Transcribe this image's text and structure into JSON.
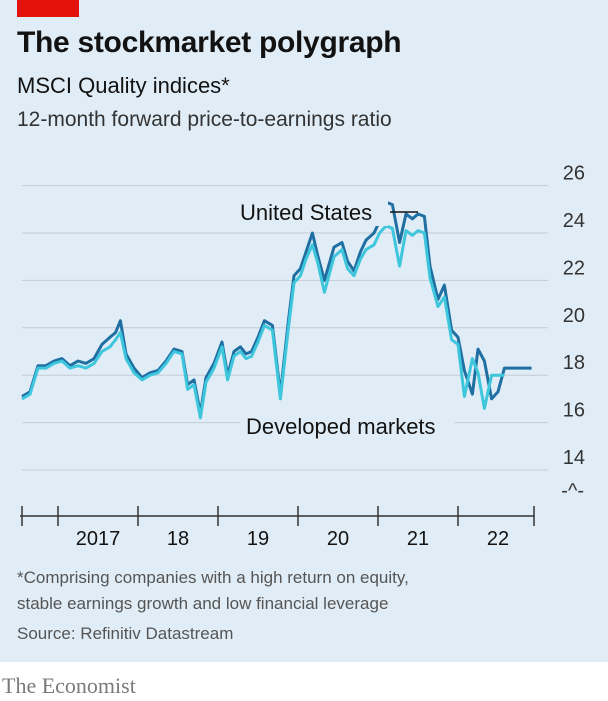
{
  "header": {
    "title": "The stockmarket polygraph",
    "subtitle": "MSCI Quality indices*",
    "unit": "12-month forward price-to-earnings ratio"
  },
  "footer": {
    "note_line1": "*Comprising companies with a high return on equity,",
    "note_line2": "stable earnings growth and low financial leverage",
    "source": "Source: Refinitiv Datastream",
    "brand": "The Economist"
  },
  "colors": {
    "background": "#e1edf6",
    "us": "#1f6fa3",
    "developed": "#3dc6dc",
    "accent": "#e3120b"
  },
  "chart_data": {
    "type": "line",
    "ylim": [
      13,
      26
    ],
    "yticks": [
      "26",
      "24",
      "22",
      "20",
      "18",
      "16",
      "14"
    ],
    "axis_break_symbol": "-^-",
    "xlim": [
      2016.55,
      2022.95
    ],
    "xtick_labels": [
      "2017",
      "18",
      "19",
      "20",
      "21",
      "22"
    ],
    "series": [
      {
        "name": "United States",
        "x": [
          2016.55,
          2016.65,
          2016.75,
          2016.85,
          2016.95,
          2017.05,
          2017.15,
          2017.25,
          2017.35,
          2017.45,
          2017.55,
          2017.65,
          2017.72,
          2017.78,
          2017.85,
          2017.95,
          2018.05,
          2018.15,
          2018.25,
          2018.35,
          2018.45,
          2018.55,
          2018.62,
          2018.7,
          2018.78,
          2018.85,
          2018.95,
          2019.05,
          2019.12,
          2019.2,
          2019.28,
          2019.35,
          2019.42,
          2019.5,
          2019.58,
          2019.68,
          2019.78,
          2019.88,
          2019.95,
          2020.03,
          2020.1,
          2020.18,
          2020.25,
          2020.33,
          2020.45,
          2020.55,
          2020.62,
          2020.7,
          2020.78,
          2020.85,
          2020.95,
          2021.02,
          2021.1,
          2021.18,
          2021.27,
          2021.35,
          2021.43,
          2021.5,
          2021.58,
          2021.65,
          2021.75,
          2021.83,
          2021.92,
          2022.0,
          2022.08,
          2022.18,
          2022.25,
          2022.33,
          2022.42,
          2022.5,
          2022.58,
          2022.66,
          2022.75,
          2022.84,
          2022.92
        ],
        "values": [
          17.1,
          17.3,
          18.4,
          18.4,
          18.6,
          18.7,
          18.4,
          18.6,
          18.5,
          18.7,
          19.3,
          19.6,
          19.8,
          20.3,
          18.9,
          18.3,
          17.9,
          18.1,
          18.2,
          18.6,
          19.1,
          19.0,
          17.6,
          17.8,
          16.4,
          17.9,
          18.5,
          19.4,
          18.0,
          19.0,
          19.2,
          18.9,
          19.0,
          19.6,
          20.3,
          20.1,
          17.2,
          20.3,
          22.2,
          22.5,
          23.2,
          24.0,
          23.0,
          22.0,
          23.4,
          23.6,
          22.8,
          22.4,
          23.2,
          23.7,
          24.0,
          24.5,
          25.3,
          25.2,
          23.6,
          24.8,
          24.6,
          24.8,
          24.7,
          22.6,
          21.2,
          21.8,
          19.9,
          19.6,
          18.2,
          17.2,
          19.1,
          18.6,
          17.0,
          17.3,
          18.3,
          18.3,
          18.3,
          18.3,
          18.3
        ]
      },
      {
        "name": "Developed markets",
        "x": [
          2016.55,
          2016.65,
          2016.75,
          2016.85,
          2016.95,
          2017.05,
          2017.15,
          2017.25,
          2017.35,
          2017.45,
          2017.55,
          2017.65,
          2017.72,
          2017.78,
          2017.85,
          2017.95,
          2018.05,
          2018.15,
          2018.25,
          2018.35,
          2018.45,
          2018.55,
          2018.62,
          2018.7,
          2018.78,
          2018.85,
          2018.95,
          2019.05,
          2019.12,
          2019.2,
          2019.28,
          2019.35,
          2019.42,
          2019.5,
          2019.58,
          2019.68,
          2019.78,
          2019.88,
          2019.95,
          2020.03,
          2020.1,
          2020.18,
          2020.25,
          2020.33,
          2020.45,
          2020.55,
          2020.62,
          2020.7,
          2020.78,
          2020.85,
          2020.95,
          2021.02,
          2021.1,
          2021.18,
          2021.27,
          2021.35,
          2021.43,
          2021.5,
          2021.58,
          2021.65,
          2021.75,
          2021.83,
          2021.92,
          2022.0,
          2022.08,
          2022.18,
          2022.25,
          2022.33,
          2022.42,
          2022.5,
          2022.58
        ],
        "values": [
          17.0,
          17.2,
          18.3,
          18.3,
          18.5,
          18.6,
          18.3,
          18.4,
          18.3,
          18.5,
          19.0,
          19.2,
          19.5,
          19.8,
          18.7,
          18.1,
          17.8,
          18.0,
          18.1,
          18.5,
          19.0,
          18.9,
          17.4,
          17.6,
          16.2,
          17.7,
          18.3,
          19.2,
          17.8,
          18.8,
          19.0,
          18.7,
          18.8,
          19.4,
          20.1,
          19.9,
          17.0,
          20.0,
          21.9,
          22.2,
          22.9,
          23.5,
          22.7,
          21.5,
          23.0,
          23.3,
          22.5,
          22.2,
          22.9,
          23.3,
          23.5,
          24.0,
          24.3,
          24.2,
          22.6,
          24.1,
          23.9,
          24.1,
          24.0,
          22.1,
          20.9,
          21.3,
          19.5,
          19.3,
          17.1,
          18.7,
          18.1,
          16.6,
          18.0,
          18.0,
          18.0
        ]
      }
    ],
    "labels": {
      "us": "United States",
      "developed": "Developed markets"
    }
  }
}
